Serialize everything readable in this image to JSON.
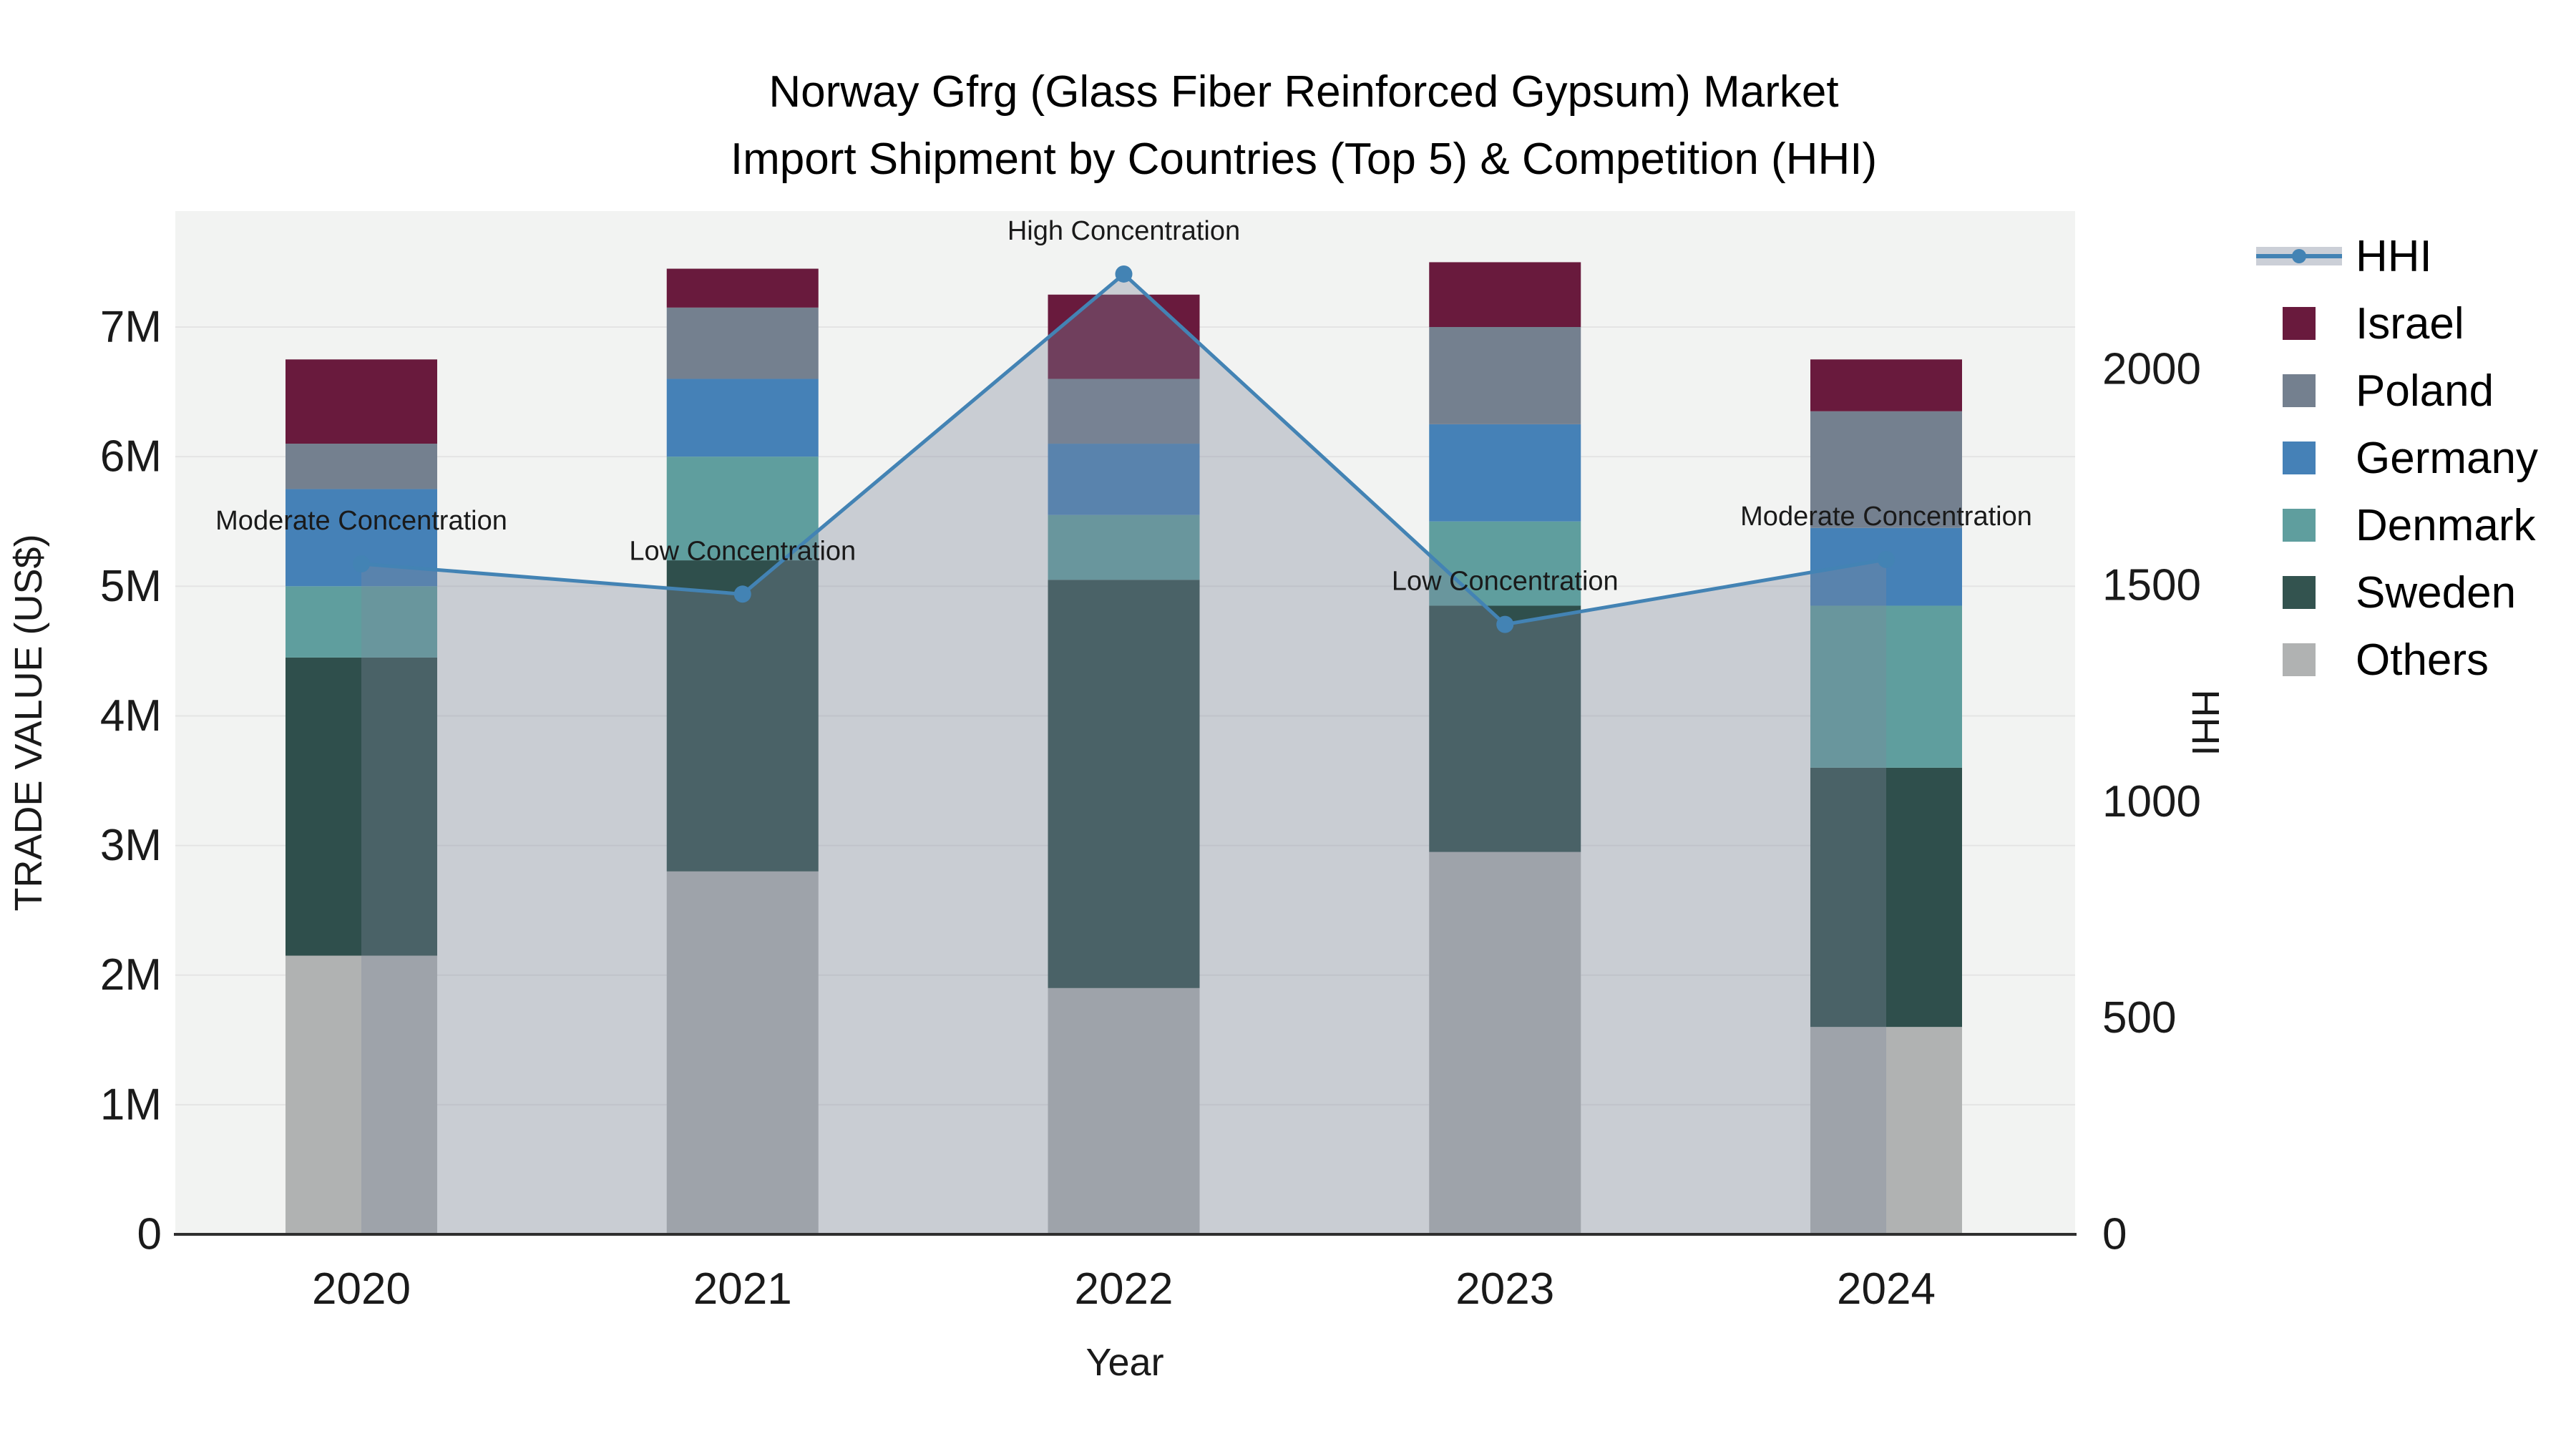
{
  "title": {
    "line1": "Norway Gfrg (Glass Fiber Reinforced Gypsum) Market",
    "line2": "Import Shipment by Countries (Top 5) & Competition (HHI)"
  },
  "axes": {
    "left": {
      "title": "TRADE VALUE (US$)",
      "tick_labels": [
        "0",
        "1M",
        "2M",
        "3M",
        "4M",
        "5M",
        "6M",
        "7M"
      ],
      "tick_values": [
        0,
        1,
        2,
        3,
        4,
        5,
        6,
        7
      ]
    },
    "right": {
      "title": "HHI",
      "tick_labels": [
        "0",
        "500",
        "1000",
        "1500",
        "2000"
      ],
      "tick_values": [
        0,
        500,
        1000,
        1500,
        2000
      ]
    },
    "x": {
      "title": "Year",
      "tick_labels": [
        "2020",
        "2021",
        "2022",
        "2023",
        "2024"
      ]
    }
  },
  "legend": {
    "items": [
      {
        "label": "HHI",
        "type": "line",
        "color": "#4383b4",
        "fill": "rgba(125,136,156,0.40)"
      },
      {
        "label": "Israel",
        "type": "swatch",
        "color": "#691a3d"
      },
      {
        "label": "Poland",
        "type": "swatch",
        "color": "#74808f"
      },
      {
        "label": "Germany",
        "type": "swatch",
        "color": "#4581b7"
      },
      {
        "label": "Denmark",
        "type": "swatch",
        "color": "#5f9e9e"
      },
      {
        "label": "Sweden",
        "type": "swatch",
        "color": "#33534f"
      },
      {
        "label": "Others",
        "type": "swatch",
        "color": "#b0b2b2"
      }
    ]
  },
  "annotations": [
    {
      "year": "2020",
      "label": "Moderate Concentration"
    },
    {
      "year": "2021",
      "label": "Low Concentration"
    },
    {
      "year": "2022",
      "label": "High Concentration"
    },
    {
      "year": "2023",
      "label": "Low Concentration"
    },
    {
      "year": "2024",
      "label": "Moderate Concentration"
    }
  ],
  "colors": {
    "plot_bg": "#f2f3f2",
    "grid": "#e4e4e4",
    "axis_line": "#2f2f2f",
    "text": "#1a1a1a"
  },
  "chart_data": {
    "type": "bar+line",
    "title": "Norway Gfrg (Glass Fiber Reinforced Gypsum) Market — Import Shipment by Countries (Top 5) & Competition (HHI)",
    "xlabel": "Year",
    "ylabel_left": "TRADE VALUE (US$)",
    "ylabel_right": "HHI",
    "categories": [
      "2020",
      "2021",
      "2022",
      "2023",
      "2024"
    ],
    "units": "millions US$ (bars), index points (HHI line)",
    "stack_order_bottom_to_top": [
      "Others",
      "Sweden",
      "Denmark",
      "Germany",
      "Poland",
      "Israel"
    ],
    "series": [
      {
        "name": "Others",
        "color": "#b0b2b2",
        "values": [
          2.15,
          2.8,
          1.9,
          2.95,
          1.6
        ]
      },
      {
        "name": "Sweden",
        "color": "#2f4f4c",
        "values": [
          2.3,
          2.4,
          3.15,
          1.9,
          2.0
        ]
      },
      {
        "name": "Denmark",
        "color": "#5f9e9e",
        "values": [
          0.55,
          0.8,
          0.5,
          0.65,
          1.25
        ]
      },
      {
        "name": "Germany",
        "color": "#4581b7",
        "values": [
          0.75,
          0.6,
          0.55,
          0.75,
          0.6
        ]
      },
      {
        "name": "Poland",
        "color": "#74808f",
        "values": [
          0.35,
          0.55,
          0.5,
          0.75,
          0.9
        ]
      },
      {
        "name": "Israel",
        "color": "#691a3d",
        "values": [
          0.65,
          0.3,
          0.65,
          0.5,
          0.4
        ]
      }
    ],
    "bar_totals": [
      6.75,
      7.45,
      7.25,
      7.5,
      6.75
    ],
    "line_series": {
      "name": "HHI",
      "axis": "right",
      "color": "#4383b4",
      "fill": "rgba(125,136,156,0.35)",
      "values": [
        1550,
        1480,
        2220,
        1410,
        1560
      ]
    },
    "ylim_left": [
      0,
      7.9
    ],
    "ylim_right": [
      0,
      2366
    ],
    "grid": "horizontal, every 1M"
  }
}
